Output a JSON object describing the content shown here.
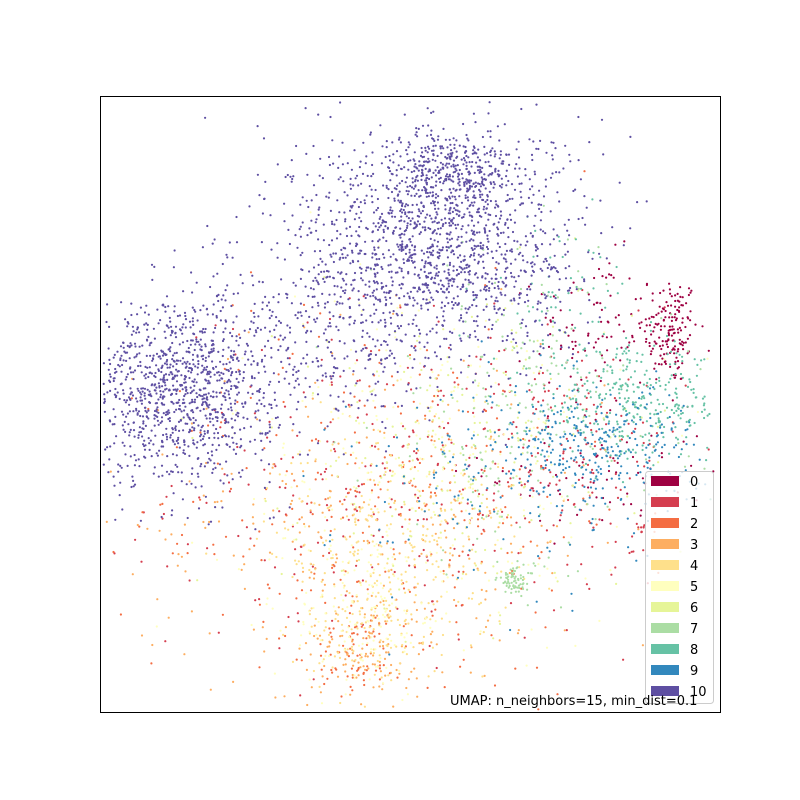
{
  "chart_data": {
    "type": "scatter",
    "title": "",
    "xlabel": "",
    "ylabel": "",
    "axis_ticks": "none",
    "grid": false,
    "annotation": "UMAP: n_neighbors=15, min_dist=0.1",
    "legend_position": "bottom-right",
    "legend": [
      {
        "label": "0",
        "color": "#9e0142"
      },
      {
        "label": "1",
        "color": "#d53e4f"
      },
      {
        "label": "2",
        "color": "#f46d43"
      },
      {
        "label": "3",
        "color": "#fdae61"
      },
      {
        "label": "4",
        "color": "#fee08b"
      },
      {
        "label": "5",
        "color": "#ffffbf"
      },
      {
        "label": "6",
        "color": "#e6f598"
      },
      {
        "label": "7",
        "color": "#abdda4"
      },
      {
        "label": "8",
        "color": "#66c2a5"
      },
      {
        "label": "9",
        "color": "#3288bd"
      },
      {
        "label": "10",
        "color": "#5e4fa2"
      }
    ],
    "xlim": [
      0,
      10
    ],
    "ylim": [
      0,
      10
    ],
    "series": [
      {
        "name": "0",
        "clusters": [
          {
            "cx": 9.2,
            "cy": 6.2,
            "sx": 0.22,
            "sy": 0.45,
            "n": 160
          },
          {
            "cx": 8.0,
            "cy": 6.2,
            "sx": 0.5,
            "sy": 0.6,
            "n": 90
          },
          {
            "cx": 8.0,
            "cy": 3.9,
            "sx": 0.9,
            "sy": 0.5,
            "n": 70
          }
        ]
      },
      {
        "name": "1",
        "clusters": [
          {
            "cx": 5.0,
            "cy": 3.8,
            "sx": 1.9,
            "sy": 1.4,
            "n": 320
          },
          {
            "cx": 7.6,
            "cy": 4.2,
            "sx": 0.9,
            "sy": 0.7,
            "n": 110
          },
          {
            "cx": 8.7,
            "cy": 3.0,
            "sx": 0.05,
            "sy": 0.2,
            "n": 10
          }
        ]
      },
      {
        "name": "2",
        "clusters": [
          {
            "cx": 4.5,
            "cy": 3.3,
            "sx": 2.0,
            "sy": 1.6,
            "n": 300
          },
          {
            "cx": 4.1,
            "cy": 0.9,
            "sx": 0.35,
            "sy": 0.3,
            "n": 60
          }
        ]
      },
      {
        "name": "3",
        "clusters": [
          {
            "cx": 4.4,
            "cy": 3.0,
            "sx": 1.9,
            "sy": 1.5,
            "n": 320
          },
          {
            "cx": 4.3,
            "cy": 1.0,
            "sx": 0.45,
            "sy": 0.4,
            "n": 90
          }
        ]
      },
      {
        "name": "4",
        "clusters": [
          {
            "cx": 4.7,
            "cy": 2.8,
            "sx": 1.0,
            "sy": 0.9,
            "n": 280
          },
          {
            "cx": 4.4,
            "cy": 1.3,
            "sx": 0.5,
            "sy": 0.6,
            "n": 100
          }
        ]
      },
      {
        "name": "5",
        "clusters": [
          {
            "cx": 5.2,
            "cy": 4.0,
            "sx": 1.6,
            "sy": 1.5,
            "n": 260
          },
          {
            "cx": 4.3,
            "cy": 1.6,
            "sx": 0.6,
            "sy": 0.7,
            "n": 120
          }
        ]
      },
      {
        "name": "6",
        "clusters": [
          {
            "cx": 5.8,
            "cy": 4.2,
            "sx": 1.4,
            "sy": 1.2,
            "n": 220
          }
        ]
      },
      {
        "name": "7",
        "clusters": [
          {
            "cx": 6.8,
            "cy": 4.9,
            "sx": 1.2,
            "sy": 1.3,
            "n": 200
          },
          {
            "cx": 6.7,
            "cy": 2.15,
            "sx": 0.15,
            "sy": 0.12,
            "n": 70
          }
        ]
      },
      {
        "name": "8",
        "clusters": [
          {
            "cx": 8.6,
            "cy": 5.0,
            "sx": 0.75,
            "sy": 0.45,
            "n": 320
          },
          {
            "cx": 7.4,
            "cy": 6.8,
            "sx": 0.6,
            "sy": 0.6,
            "n": 60
          }
        ]
      },
      {
        "name": "9",
        "clusters": [
          {
            "cx": 7.9,
            "cy": 4.3,
            "sx": 0.9,
            "sy": 0.5,
            "n": 330
          },
          {
            "cx": 6.2,
            "cy": 3.6,
            "sx": 1.2,
            "sy": 1.0,
            "n": 90
          }
        ]
      },
      {
        "name": "10",
        "clusters": [
          {
            "cx": 1.3,
            "cy": 5.2,
            "sx": 0.75,
            "sy": 0.75,
            "n": 1100
          },
          {
            "cx": 5.4,
            "cy": 7.6,
            "sx": 1.15,
            "sy": 0.95,
            "n": 1500
          },
          {
            "cx": 5.7,
            "cy": 8.8,
            "sx": 0.5,
            "sy": 0.35,
            "n": 300
          },
          {
            "cx": 3.5,
            "cy": 6.0,
            "sx": 0.9,
            "sy": 0.7,
            "n": 250
          }
        ]
      }
    ]
  }
}
